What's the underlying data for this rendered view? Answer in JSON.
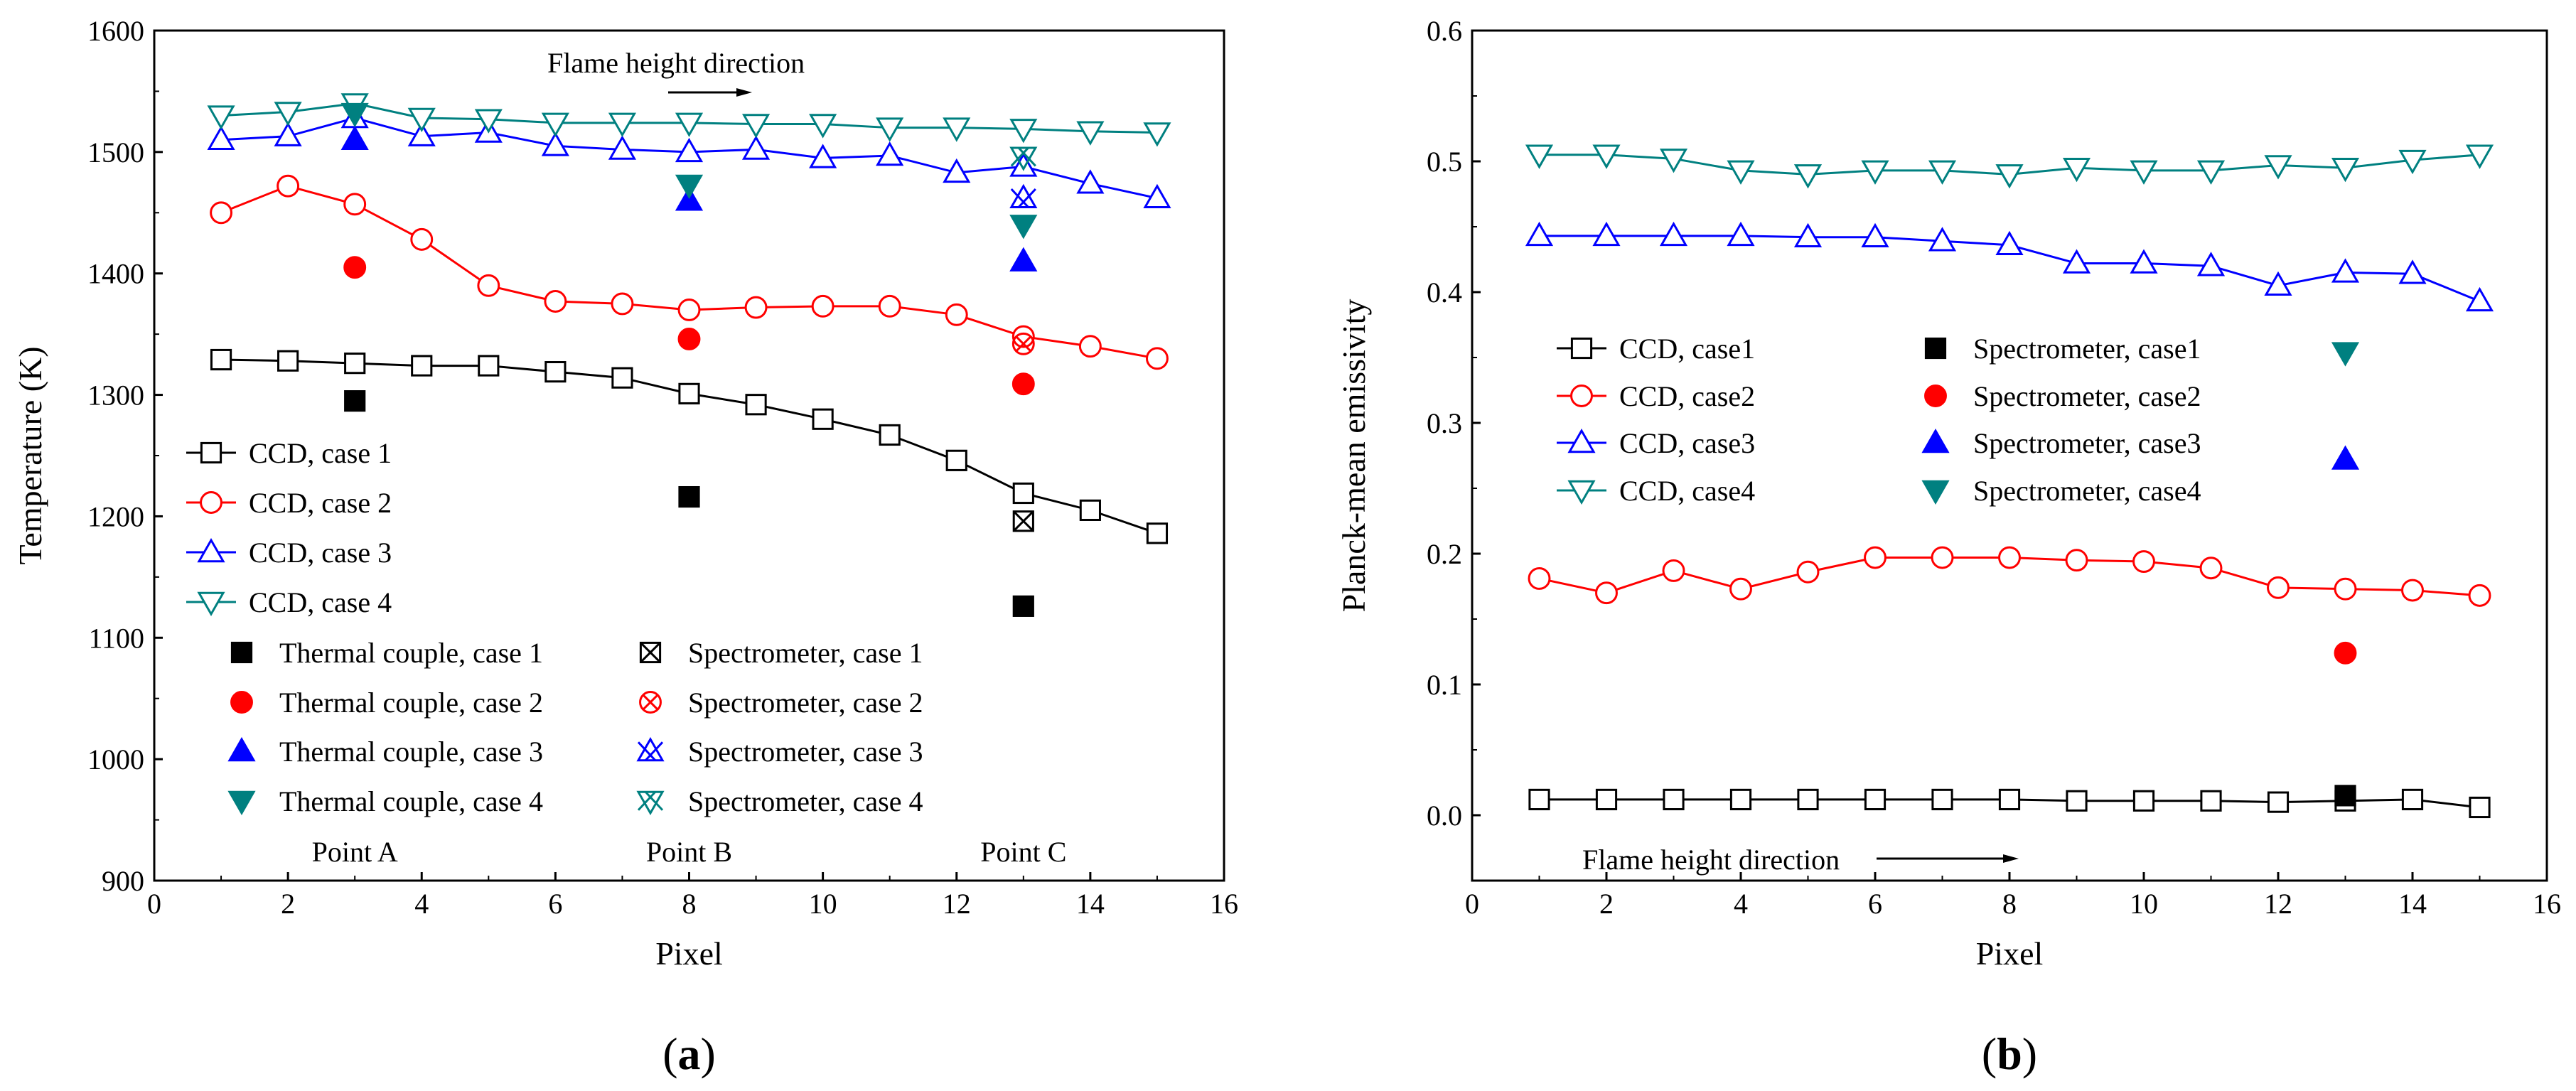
{
  "chart_data": [
    {
      "type": "scatter",
      "panel_label_open": "(",
      "panel_label": "a",
      "panel_label_close": ")",
      "xlabel": "Pixel",
      "ylabel": "Temperature (K)",
      "xlim": [
        0,
        16
      ],
      "ylim": [
        900,
        1600
      ],
      "xticks": [
        0,
        2,
        4,
        6,
        8,
        10,
        12,
        14,
        16
      ],
      "yticks": [
        900,
        1000,
        1100,
        1200,
        1300,
        1400,
        1500,
        1600
      ],
      "grid": false,
      "annotations": {
        "arrow_text": "Flame height direction",
        "points": [
          {
            "label": "Point A",
            "x": 3
          },
          {
            "label": "Point B",
            "x": 8
          },
          {
            "label": "Point C",
            "x": 13
          }
        ]
      },
      "series": [
        {
          "name": "CCD, case 1",
          "kind": "line",
          "marker": "square-open",
          "color": "#000000",
          "x": [
            1,
            2,
            3,
            4,
            5,
            6,
            7,
            8,
            9,
            10,
            11,
            12,
            13,
            14,
            15
          ],
          "values": [
            1329,
            1328,
            1326,
            1324,
            1324,
            1319,
            1314,
            1301,
            1292,
            1280,
            1267,
            1246,
            1219,
            1205,
            1186
          ]
        },
        {
          "name": "CCD, case 2",
          "kind": "line",
          "marker": "circle-open",
          "color": "#ff0000",
          "x": [
            1,
            2,
            3,
            4,
            5,
            6,
            7,
            8,
            9,
            10,
            11,
            12,
            13,
            14,
            15
          ],
          "values": [
            1450,
            1472,
            1457,
            1428,
            1390,
            1377,
            1375,
            1370,
            1372,
            1373,
            1373,
            1366,
            1348,
            1340,
            1330
          ]
        },
        {
          "name": "CCD, case 3",
          "kind": "line",
          "marker": "triangle-open",
          "color": "#0000ff",
          "x": [
            1,
            2,
            3,
            4,
            5,
            6,
            7,
            8,
            9,
            10,
            11,
            12,
            13,
            14,
            15
          ],
          "values": [
            1510,
            1513,
            1528,
            1513,
            1516,
            1505,
            1502,
            1500,
            1502,
            1495,
            1497,
            1483,
            1488,
            1474,
            1462
          ]
        },
        {
          "name": "CCD, case 4",
          "kind": "line",
          "marker": "triangle-down-open",
          "color": "#008080",
          "x": [
            1,
            2,
            3,
            4,
            5,
            6,
            7,
            8,
            9,
            10,
            11,
            12,
            13,
            14,
            15
          ],
          "values": [
            1530,
            1533,
            1540,
            1528,
            1527,
            1524,
            1524,
            1524,
            1523,
            1523,
            1520,
            1520,
            1519,
            1517,
            1516
          ]
        },
        {
          "name": "Thermal couple, case 1",
          "kind": "point",
          "marker": "square-filled",
          "color": "#000000",
          "x": [
            3,
            8,
            13
          ],
          "values": [
            1295,
            1216,
            1126
          ]
        },
        {
          "name": "Thermal couple, case 2",
          "kind": "point",
          "marker": "circle-filled",
          "color": "#ff0000",
          "x": [
            3,
            8,
            13
          ],
          "values": [
            1405,
            1346,
            1309
          ]
        },
        {
          "name": "Thermal couple, case 3",
          "kind": "point",
          "marker": "triangle-filled",
          "color": "#0000ff",
          "x": [
            3,
            8,
            13
          ],
          "values": [
            1510,
            1460,
            1410
          ]
        },
        {
          "name": "Thermal couple, case 4",
          "kind": "point",
          "marker": "triangle-down-filled",
          "color": "#008080",
          "x": [
            3,
            8,
            13
          ],
          "values": [
            1532,
            1473,
            1440
          ]
        },
        {
          "name": "Spectrometer, case 1",
          "kind": "point",
          "marker": "square-x",
          "color": "#000000",
          "x": [
            13
          ],
          "values": [
            1196
          ]
        },
        {
          "name": "Spectrometer, case 2",
          "kind": "point",
          "marker": "circle-x",
          "color": "#ff0000",
          "x": [
            13
          ],
          "values": [
            1342
          ]
        },
        {
          "name": "Spectrometer, case 3",
          "kind": "point",
          "marker": "triangle-x",
          "color": "#0000ff",
          "x": [
            13
          ],
          "values": [
            1462
          ]
        },
        {
          "name": "Spectrometer, case 4",
          "kind": "point",
          "marker": "triangle-down-x",
          "color": "#008080",
          "x": [
            13
          ],
          "values": [
            1496
          ]
        }
      ]
    },
    {
      "type": "scatter",
      "panel_label_open": "(",
      "panel_label": "b",
      "panel_label_close": ")",
      "xlabel": "Pixel",
      "ylabel": "Planck-mean emissivity",
      "xlim": [
        0,
        16
      ],
      "ylim": [
        -0.05,
        0.6
      ],
      "xticks": [
        0,
        2,
        4,
        6,
        8,
        10,
        12,
        14,
        16
      ],
      "yticks": [
        "0.0",
        "0.1",
        "0.2",
        "0.3",
        "0.4",
        "0.5",
        "0.6"
      ],
      "grid": false,
      "annotations": {
        "arrow_text": "Flame height direction"
      },
      "series": [
        {
          "name": "CCD, case1",
          "kind": "line",
          "marker": "square-open",
          "color": "#000000",
          "x": [
            1,
            2,
            3,
            4,
            5,
            6,
            7,
            8,
            9,
            10,
            11,
            12,
            13,
            14,
            15
          ],
          "values": [
            0.012,
            0.012,
            0.012,
            0.012,
            0.012,
            0.012,
            0.012,
            0.012,
            0.011,
            0.011,
            0.011,
            0.01,
            0.011,
            0.012,
            0.006
          ]
        },
        {
          "name": "CCD, case2",
          "kind": "line",
          "marker": "circle-open",
          "color": "#ff0000",
          "x": [
            1,
            2,
            3,
            4,
            5,
            6,
            7,
            8,
            9,
            10,
            11,
            12,
            13,
            14,
            15
          ],
          "values": [
            0.181,
            0.17,
            0.187,
            0.173,
            0.186,
            0.197,
            0.197,
            0.197,
            0.195,
            0.194,
            0.189,
            0.174,
            0.173,
            0.172,
            0.168
          ]
        },
        {
          "name": "CCD, case3",
          "kind": "line",
          "marker": "triangle-open",
          "color": "#0000ff",
          "x": [
            1,
            2,
            3,
            4,
            5,
            6,
            7,
            8,
            9,
            10,
            11,
            12,
            13,
            14,
            15
          ],
          "values": [
            0.443,
            0.443,
            0.443,
            0.443,
            0.442,
            0.442,
            0.439,
            0.436,
            0.422,
            0.422,
            0.42,
            0.405,
            0.415,
            0.414,
            0.393
          ]
        },
        {
          "name": "CCD, case4",
          "kind": "line",
          "marker": "triangle-down-open",
          "color": "#008080",
          "x": [
            1,
            2,
            3,
            4,
            5,
            6,
            7,
            8,
            9,
            10,
            11,
            12,
            13,
            14,
            15
          ],
          "values": [
            0.505,
            0.505,
            0.502,
            0.493,
            0.49,
            0.493,
            0.493,
            0.49,
            0.495,
            0.493,
            0.493,
            0.497,
            0.495,
            0.501,
            0.505
          ]
        },
        {
          "name": "Spectrometer, case1",
          "kind": "point",
          "marker": "square-filled",
          "color": "#000000",
          "x": [
            13
          ],
          "values": [
            0.015
          ]
        },
        {
          "name": "Spectrometer, case2",
          "kind": "point",
          "marker": "circle-filled",
          "color": "#ff0000",
          "x": [
            13
          ],
          "values": [
            0.124
          ]
        },
        {
          "name": "Spectrometer, case3",
          "kind": "point",
          "marker": "triangle-filled",
          "color": "#0000ff",
          "x": [
            13
          ],
          "values": [
            0.272
          ]
        },
        {
          "name": "Spectrometer, case4",
          "kind": "point",
          "marker": "triangle-down-filled",
          "color": "#008080",
          "x": [
            13
          ],
          "values": [
            0.354
          ]
        }
      ]
    }
  ]
}
